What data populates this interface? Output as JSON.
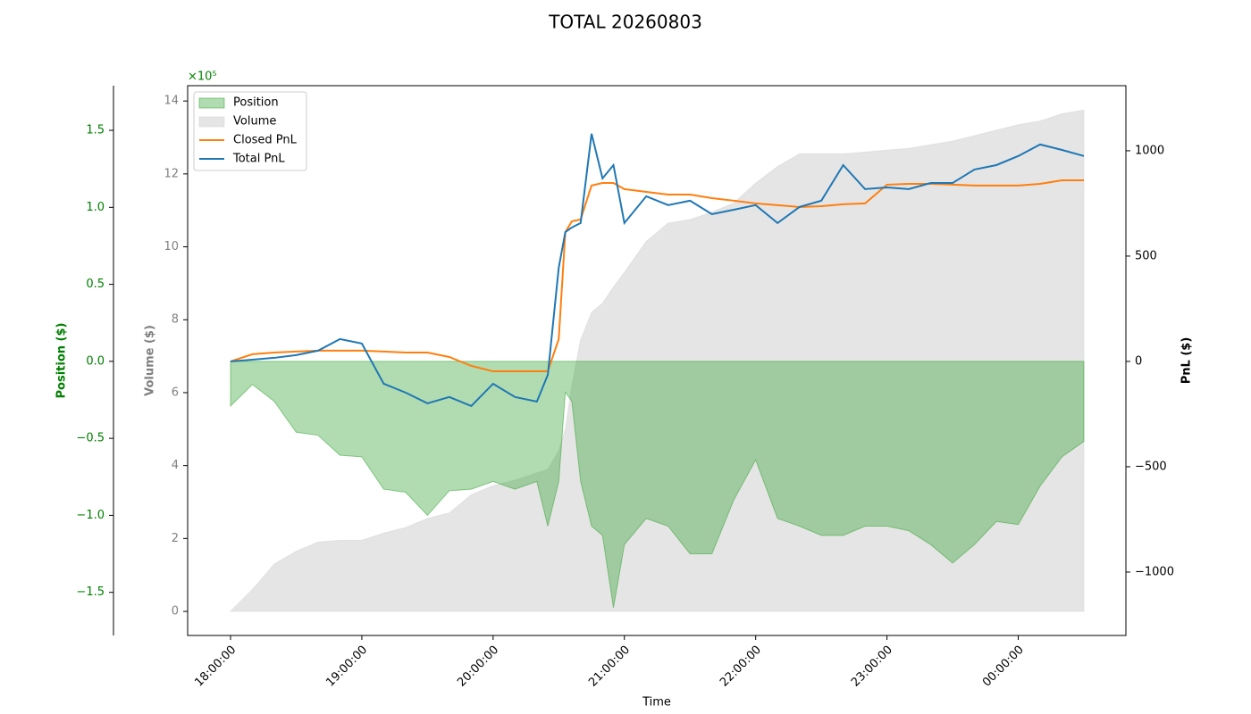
{
  "chart_data": {
    "type": "line",
    "title": "TOTAL 20260803",
    "x_label": "Time",
    "xlim": [
      "17:40:24",
      "00:49:12"
    ],
    "xticks": [
      "18:00:00",
      "19:00:00",
      "20:00:00",
      "21:00:00",
      "22:00:00",
      "23:00:00",
      "00:00:00"
    ],
    "x": [
      "18:00",
      "18:10",
      "18:20",
      "18:30",
      "18:40",
      "18:50",
      "19:00",
      "19:10",
      "19:20",
      "19:30",
      "19:40",
      "19:50",
      "20:00",
      "20:10",
      "20:20",
      "20:25",
      "20:30",
      "20:33",
      "20:36",
      "20:40",
      "20:45",
      "20:50",
      "20:55",
      "21:00",
      "21:10",
      "21:20",
      "21:30",
      "21:40",
      "21:50",
      "22:00",
      "22:10",
      "22:20",
      "22:30",
      "22:40",
      "22:50",
      "23:00",
      "23:10",
      "23:20",
      "23:30",
      "23:40",
      "23:50",
      "00:00",
      "00:10",
      "00:20",
      "00:30"
    ],
    "axes": {
      "position": {
        "label": "Position ($)",
        "color": "#008000",
        "lim": [
          -1.78,
          1.79
        ],
        "ticks": [
          {
            "value": -1.5,
            "label": "−1.5"
          },
          {
            "value": -1,
            "label": "−1.0"
          },
          {
            "value": -0.5,
            "label": "−0.5"
          },
          {
            "value": 0,
            "label": "0.0"
          },
          {
            "value": 0.5,
            "label": "0.5"
          },
          {
            "value": 1,
            "label": "1.0"
          },
          {
            "value": 1.5,
            "label": "1.5"
          }
        ]
      },
      "volume": {
        "label": "Volume ($)",
        "color": "#808080",
        "lim": [
          -0.66,
          14.42
        ],
        "offset_label": "×10⁵",
        "ticks": [
          0,
          2,
          4,
          6,
          8,
          10,
          12,
          14
        ]
      },
      "pnl": {
        "label": "PnL ($)",
        "color": "#000000",
        "lim": [
          -1301,
          1309
        ],
        "ticks": [
          {
            "value": -1000,
            "label": "−1000"
          },
          {
            "value": -500,
            "label": "−500"
          },
          0,
          500,
          1000
        ]
      }
    },
    "legend": "upper left",
    "series": [
      {
        "name": "Position",
        "color": "#2ca02c",
        "style": "fill",
        "axis": "position",
        "values": [
          -0.29,
          -0.15,
          -0.26,
          -0.46,
          -0.48,
          -0.61,
          -0.62,
          -0.83,
          -0.85,
          -1.0,
          -0.84,
          -0.83,
          -0.78,
          -0.83,
          -0.78,
          -1.07,
          -0.78,
          -0.2,
          -0.26,
          -0.78,
          -1.07,
          -1.13,
          -1.6,
          -1.19,
          -1.02,
          -1.07,
          -1.25,
          -1.25,
          -0.9,
          -0.64,
          -1.02,
          -1.07,
          -1.13,
          -1.13,
          -1.07,
          -1.07,
          -1.1,
          -1.19,
          -1.31,
          -1.19,
          -1.04,
          -1.06,
          -0.81,
          -0.62,
          -0.52
        ]
      },
      {
        "name": "Volume",
        "color": "#d3d3d3",
        "style": "fill",
        "axis": "volume",
        "values": [
          0,
          0.6,
          1.3,
          1.65,
          1.9,
          1.95,
          1.95,
          2.15,
          2.3,
          2.55,
          2.7,
          3.2,
          3.45,
          3.6,
          3.8,
          3.9,
          4.4,
          5.0,
          6.2,
          7.45,
          8.2,
          8.45,
          8.9,
          9.3,
          10.15,
          10.65,
          10.75,
          10.95,
          11.2,
          11.75,
          12.2,
          12.55,
          12.55,
          12.55,
          12.6,
          12.65,
          12.7,
          12.8,
          12.9,
          13.05,
          13.2,
          13.35,
          13.45,
          13.65,
          13.75
        ]
      },
      {
        "name": "Closed PnL",
        "color": "#ff7f0e",
        "style": "line",
        "axis": "pnl",
        "values": [
          0,
          34,
          42,
          47,
          51,
          51,
          51,
          47,
          42,
          42,
          21,
          -21,
          -47,
          -47,
          -47,
          -47,
          106,
          614,
          665,
          674,
          835,
          847,
          847,
          818,
          805,
          792,
          792,
          775,
          763,
          750,
          742,
          733,
          737,
          746,
          750,
          839,
          843,
          843,
          839,
          835,
          835,
          835,
          843,
          860,
          860
        ]
      },
      {
        "name": "Total PnL",
        "color": "#1f77b4",
        "style": "line",
        "axis": "pnl",
        "values": [
          0,
          8,
          17,
          30,
          51,
          106,
          85,
          -106,
          -148,
          -199,
          -169,
          -212,
          -106,
          -169,
          -191,
          -64,
          445,
          614,
          636,
          657,
          1081,
          869,
          932,
          657,
          784,
          742,
          763,
          699,
          720,
          742,
          657,
          733,
          763,
          932,
          818,
          826,
          818,
          847,
          847,
          911,
          932,
          975,
          1030,
          1004,
          975
        ]
      }
    ]
  }
}
